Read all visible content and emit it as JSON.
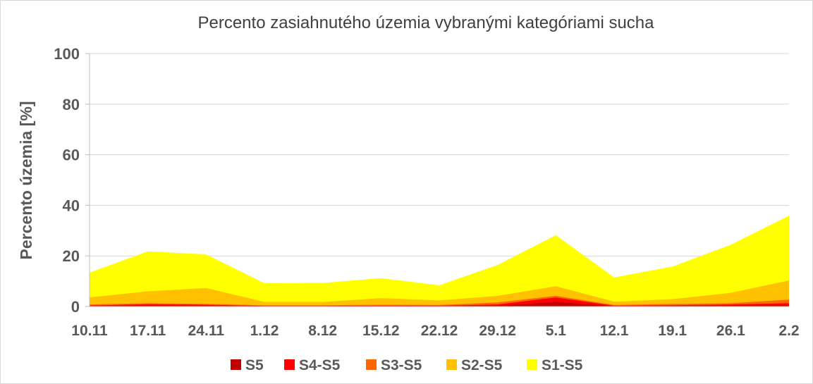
{
  "chart_data": {
    "type": "area",
    "title": "Percento zasiahnutého územia vybranými kategóriami sucha",
    "ylabel": "Percento územia  [%]",
    "xlabel": "",
    "ylim": [
      0,
      100
    ],
    "yticks": [
      "0",
      "20",
      "40",
      "60",
      "80",
      "100"
    ],
    "categories": [
      "10.11",
      "17.11",
      "24.11",
      "1.12",
      "8.12",
      "15.12",
      "22.12",
      "29.12",
      "5.1",
      "12.1",
      "19.1",
      "26.1",
      "2.2"
    ],
    "grid": true,
    "legend_position": "bottom",
    "series": [
      {
        "name": "S5",
        "color": "#c00000",
        "values": [
          0.1,
          0.3,
          0.2,
          0.1,
          0.1,
          0.1,
          0.1,
          0.3,
          1.8,
          0.1,
          0.2,
          0.3,
          0.5
        ]
      },
      {
        "name": "S4-S5",
        "color": "#ff0000",
        "values": [
          0.4,
          0.9,
          0.7,
          0.2,
          0.2,
          0.3,
          0.3,
          0.8,
          3.6,
          0.3,
          0.5,
          0.8,
          1.3
        ]
      },
      {
        "name": "S3-S5",
        "color": "#ff6600",
        "values": [
          0.8,
          1.3,
          1.0,
          0.5,
          0.5,
          0.7,
          0.6,
          1.6,
          4.2,
          0.6,
          1.0,
          1.3,
          2.7
        ]
      },
      {
        "name": "S2-S5",
        "color": "#ffc000",
        "values": [
          3.6,
          6.0,
          7.3,
          1.8,
          1.8,
          3.3,
          2.4,
          4.2,
          8.0,
          1.9,
          2.9,
          5.4,
          10.3
        ]
      },
      {
        "name": "S1-S5",
        "color": "#ffff00",
        "values": [
          13.4,
          21.8,
          20.6,
          9.2,
          9.3,
          11.2,
          8.4,
          16.4,
          28.2,
          11.5,
          15.8,
          24.4,
          35.9
        ]
      }
    ]
  }
}
